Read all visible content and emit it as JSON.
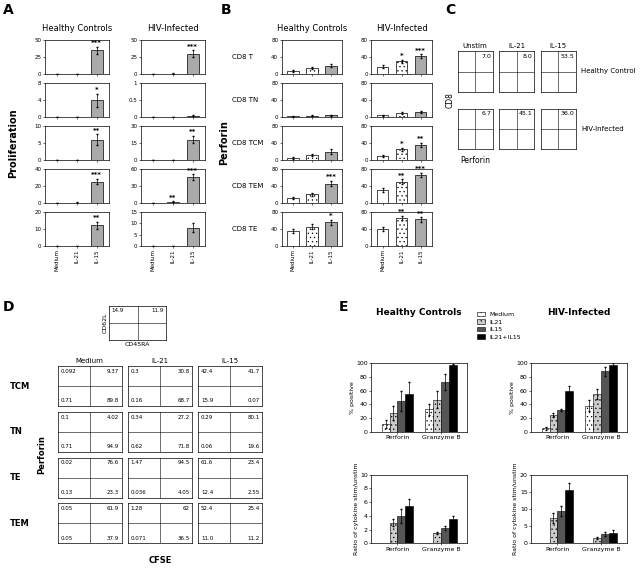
{
  "chart_data": [
    {
      "type": "bar_grid",
      "panel": "A",
      "ylabel": "Proliferation",
      "categories": [
        "Medium",
        "IL-21",
        "IL-15"
      ],
      "colors": [
        "#ffffff",
        "#ffffff",
        "#aaaaaa"
      ],
      "groups": [
        {
          "title": "Healthy Controls",
          "rows": [
            {
              "values": [
                0.5,
                0.5,
                35
              ],
              "errors": [
                0.2,
                0.2,
                5
              ],
              "ylim": [
                0,
                50
              ],
              "yticks": [
                0,
                25,
                50
              ],
              "stars": [
                null,
                null,
                "***"
              ]
            },
            {
              "values": [
                0,
                0,
                4
              ],
              "errors": [
                0,
                0,
                1.5
              ],
              "ylim": [
                0,
                8
              ],
              "yticks": [
                0,
                4,
                8
              ],
              "stars": [
                null,
                null,
                "*"
              ]
            },
            {
              "values": [
                0,
                0,
                6
              ],
              "errors": [
                0,
                0,
                1.5
              ],
              "ylim": [
                0,
                10
              ],
              "yticks": [
                0,
                5,
                10
              ],
              "stars": [
                null,
                null,
                "**"
              ]
            },
            {
              "values": [
                0,
                0.5,
                25
              ],
              "errors": [
                0,
                0.2,
                3
              ],
              "ylim": [
                0,
                40
              ],
              "yticks": [
                0,
                20,
                40
              ],
              "stars": [
                null,
                null,
                "***"
              ]
            },
            {
              "values": [
                0,
                0,
                12
              ],
              "errors": [
                0,
                0,
                2
              ],
              "ylim": [
                0,
                20
              ],
              "yticks": [
                0,
                10,
                20
              ],
              "stars": [
                null,
                null,
                "**"
              ]
            }
          ]
        },
        {
          "title": "HIV-Infected",
          "rows": [
            {
              "values": [
                0.5,
                1,
                30
              ],
              "errors": [
                0.2,
                0.5,
                5
              ],
              "ylim": [
                0,
                50
              ],
              "yticks": [
                0,
                25,
                50
              ],
              "stars": [
                null,
                null,
                "***"
              ]
            },
            {
              "values": [
                0,
                0,
                0.05
              ],
              "errors": [
                0,
                0,
                0.02
              ],
              "ylim": [
                0,
                1
              ],
              "yticks": [
                0,
                0.5,
                1
              ],
              "stars": [
                null,
                null,
                null
              ]
            },
            {
              "values": [
                0,
                0,
                18
              ],
              "errors": [
                0,
                0,
                3
              ],
              "ylim": [
                0,
                30
              ],
              "yticks": [
                0,
                15,
                30
              ],
              "stars": [
                null,
                null,
                "**"
              ]
            },
            {
              "values": [
                0,
                2,
                45
              ],
              "errors": [
                0,
                0.8,
                5
              ],
              "ylim": [
                0,
                60
              ],
              "yticks": [
                0,
                30,
                60
              ],
              "stars": [
                null,
                "**",
                "***"
              ]
            },
            {
              "values": [
                0,
                0,
                8
              ],
              "errors": [
                0,
                0,
                2
              ],
              "ylim": [
                0,
                15
              ],
              "yticks": [
                0,
                5,
                10,
                15
              ],
              "stars": [
                null,
                null,
                null
              ]
            }
          ]
        }
      ]
    },
    {
      "type": "bar_grid",
      "panel": "B",
      "ylabel": "Perforin",
      "categories": [
        "Medium",
        "IL-21",
        "IL-15"
      ],
      "colors": [
        "#ffffff",
        "#ffffff",
        "#aaaaaa"
      ],
      "row_labels": [
        "CD8 T",
        "CD8 TN",
        "CD8 TCM",
        "CD8 TEM",
        "CD8 TE"
      ],
      "groups": [
        {
          "title": "Healthy Controls",
          "rows": [
            {
              "values": [
                8,
                15,
                20
              ],
              "errors": [
                2,
                3,
                4
              ],
              "ylim": [
                0,
                80
              ],
              "yticks": [
                0,
                40,
                80
              ],
              "stars": [
                null,
                null,
                null
              ]
            },
            {
              "values": [
                2,
                4,
                5
              ],
              "errors": [
                1,
                1,
                1
              ],
              "ylim": [
                0,
                80
              ],
              "yticks": [
                0,
                40,
                80
              ],
              "stars": [
                null,
                null,
                null
              ]
            },
            {
              "values": [
                5,
                12,
                20
              ],
              "errors": [
                2,
                3,
                5
              ],
              "ylim": [
                0,
                80
              ],
              "yticks": [
                0,
                40,
                80
              ],
              "stars": [
                null,
                null,
                null
              ]
            },
            {
              "values": [
                12,
                20,
                45
              ],
              "errors": [
                3,
                4,
                6
              ],
              "ylim": [
                0,
                80
              ],
              "yticks": [
                0,
                40,
                80
              ],
              "stars": [
                null,
                null,
                "***"
              ]
            },
            {
              "values": [
                35,
                45,
                55
              ],
              "errors": [
                5,
                6,
                6
              ],
              "ylim": [
                0,
                80
              ],
              "yticks": [
                0,
                40,
                80
              ],
              "stars": [
                null,
                null,
                "*"
              ]
            }
          ]
        },
        {
          "title": "HIV-Infected",
          "rows": [
            {
              "values": [
                18,
                30,
                42
              ],
              "errors": [
                3,
                4,
                5
              ],
              "ylim": [
                0,
                80
              ],
              "yticks": [
                0,
                40,
                80
              ],
              "stars": [
                null,
                "*",
                "***"
              ]
            },
            {
              "values": [
                5,
                10,
                12
              ],
              "errors": [
                1,
                2,
                2
              ],
              "ylim": [
                0,
                80
              ],
              "yticks": [
                0,
                40,
                80
              ],
              "stars": [
                null,
                null,
                null
              ]
            },
            {
              "values": [
                10,
                25,
                35
              ],
              "errors": [
                2,
                4,
                5
              ],
              "ylim": [
                0,
                80
              ],
              "yticks": [
                0,
                40,
                80
              ],
              "stars": [
                null,
                "*",
                "**"
              ]
            },
            {
              "values": [
                30,
                50,
                65
              ],
              "errors": [
                4,
                5,
                5
              ],
              "ylim": [
                0,
                80
              ],
              "yticks": [
                0,
                40,
                80
              ],
              "stars": [
                null,
                "**",
                "***"
              ]
            },
            {
              "values": [
                40,
                65,
                62
              ],
              "errors": [
                5,
                5,
                5
              ],
              "ylim": [
                0,
                80
              ],
              "yticks": [
                0,
                40,
                80
              ],
              "stars": [
                null,
                "**",
                "**"
              ]
            }
          ]
        }
      ]
    },
    {
      "type": "flow_grid",
      "panel": "C",
      "ylabel": "CD8",
      "xlabel": "Perforin",
      "columns": [
        "Unstim",
        "IL-21",
        "IL-15"
      ],
      "row_labels": [
        "Healthy Control",
        "HIV-Infected"
      ],
      "values": [
        [
          7.0,
          8.0,
          53.5
        ],
        [
          6.7,
          45.1,
          36.0
        ]
      ]
    },
    {
      "type": "flow_grid",
      "panel": "D",
      "ylabel": "Perforin",
      "xlabel": "CFSE",
      "gate": {
        "ylabel": "CD62L",
        "xlabel": "CD45RA",
        "values": [
          14.9,
          11.9
        ]
      },
      "columns": [
        "Medium",
        "IL-21",
        "IL-15"
      ],
      "row_labels": [
        "TCM",
        "TN",
        "TE",
        "TEM"
      ],
      "quadrants": [
        [
          [
            0.092,
            9.37,
            0.71,
            89.8
          ],
          [
            0.3,
            30.8,
            0.16,
            68.7
          ],
          [
            42.4,
            41.7,
            15.9,
            0.07
          ]
        ],
        [
          [
            0.1,
            4.02,
            0.71,
            94.9
          ],
          [
            0.34,
            27.2,
            0.62,
            71.8
          ],
          [
            0.29,
            80.1,
            0.06,
            19.6
          ]
        ],
        [
          [
            0.02,
            76.6,
            0.13,
            23.3
          ],
          [
            1.47,
            94.5,
            0.036,
            4.05
          ],
          [
            61.6,
            23.4,
            12.4,
            2.55
          ]
        ],
        [
          [
            0.05,
            61.9,
            0.05,
            37.9
          ],
          [
            1.28,
            62,
            0.071,
            36.5
          ],
          [
            52.4,
            25.4,
            11.0,
            11.2
          ]
        ]
      ]
    },
    {
      "type": "grouped_bar",
      "panel": "E",
      "legend": "upper center",
      "categories": [
        "Perforin",
        "Granzyme B"
      ],
      "series_names": [
        "Medium",
        "IL21",
        "IL15",
        "IL21+IL15"
      ],
      "series_colors": [
        "#ffffff",
        "#cccccc",
        "#555555",
        "#000000"
      ],
      "groups": [
        {
          "title": "Healthy Controls",
          "charts": [
            {
              "ylabel": "% positive",
              "ylim": [
                0,
                100
              ],
              "yticks": [
                0,
                20,
                40,
                60,
                80,
                100
              ],
              "values": [
                [
                  12,
                  33
                ],
                [
                  28,
                  47
                ],
                [
                  45,
                  73
                ],
                [
                  55,
                  98
                ]
              ],
              "errors": [
                [
                  6,
                  8
                ],
                [
                  10,
                  12
                ],
                [
                  15,
                  12
                ],
                [
                  18,
                  1
                ]
              ]
            },
            {
              "ylabel": "Ratio of cytokine stim/unstim",
              "ylim": [
                0,
                10
              ],
              "yticks": [
                0,
                2,
                4,
                6,
                8,
                10
              ],
              "values": [
                [
                  null,
                  null
                ],
                [
                  3,
                  1.5
                ],
                [
                  4,
                  2.2
                ],
                [
                  5.5,
                  3.5
                ]
              ],
              "errors": [
                [
                  null,
                  null
                ],
                [
                  0.5,
                  0.2
                ],
                [
                  1,
                  0.3
                ],
                [
                  1,
                  0.5
                ]
              ]
            }
          ]
        },
        {
          "title": "HIV-Infected",
          "charts": [
            {
              "ylabel": "% positive",
              "ylim": [
                0,
                100
              ],
              "yticks": [
                0,
                20,
                40,
                60,
                80,
                100
              ],
              "values": [
                [
                  5,
                  38
                ],
                [
                  25,
                  55
                ],
                [
                  32,
                  88
                ],
                [
                  60,
                  98
                ]
              ],
              "errors": [
                [
                  2,
                  8
                ],
                [
                  3,
                  7
                ],
                [
                  2,
                  6
                ],
                [
                  7,
                  2
                ]
              ]
            },
            {
              "ylabel": "Ratio of cytokine stim/unstim",
              "ylim": [
                0,
                20
              ],
              "yticks": [
                0,
                5,
                10,
                15,
                20
              ],
              "values": [
                [
                  null,
                  null
                ],
                [
                  7.5,
                  1.5
                ],
                [
                  9.5,
                  2.8
                ],
                [
                  15.5,
                  3
                ]
              ],
              "errors": [
                [
                  null,
                  null
                ],
                [
                  1.5,
                  0.3
                ],
                [
                  1.5,
                  0.5
                ],
                [
                  2,
                  0.8
                ]
              ]
            }
          ]
        }
      ]
    }
  ]
}
